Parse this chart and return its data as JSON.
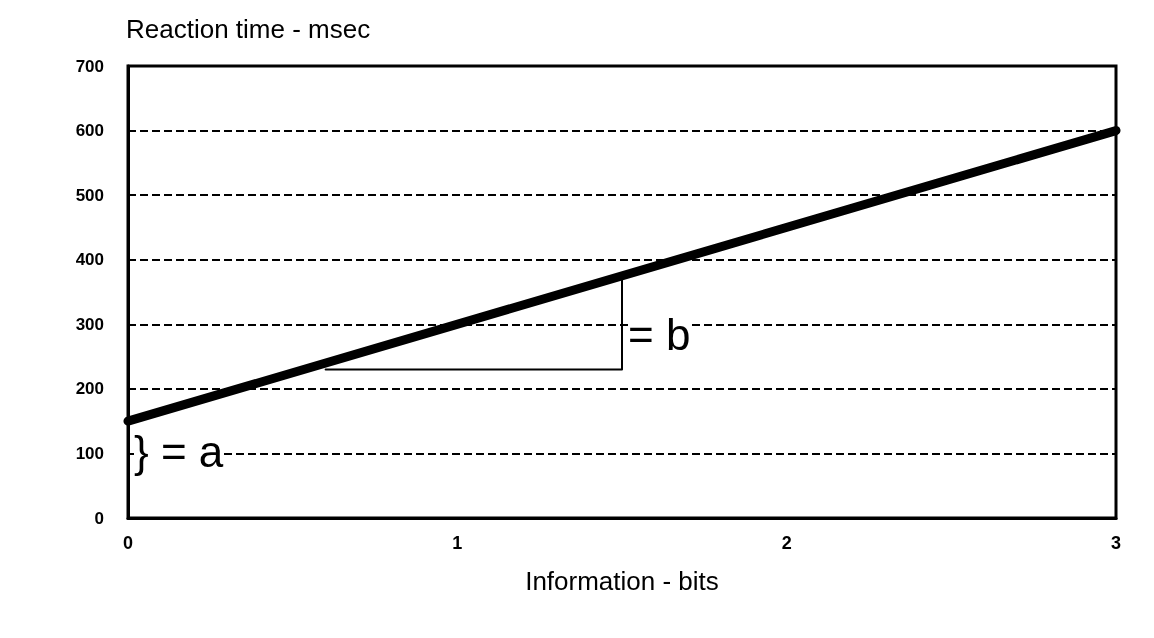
{
  "chart_data": {
    "type": "line",
    "ylabel": "Reaction time - msec",
    "xlabel": "Information - bits",
    "xlim": [
      0,
      3
    ],
    "xticks": [
      0,
      1,
      2,
      3
    ],
    "ylim": [
      0,
      700
    ],
    "yticks": [
      0,
      100,
      200,
      300,
      400,
      500,
      600,
      700
    ],
    "grid": "y",
    "marker": "none",
    "line_style": "solid",
    "series": [
      {
        "color": "#000000",
        "x": [
          0,
          3
        ],
        "values": [
          150,
          600
        ]
      },
      {
        "color": "#000000",
        "x": [
          0.6,
          1.5,
          1.5
        ],
        "values": [
          230,
          230,
          375
        ]
      }
    ],
    "annotations": [
      {
        "text": "} = a",
        "x": 0,
        "y": 150
      },
      {
        "text": "= b",
        "x": 1.5,
        "y": 330
      }
    ]
  }
}
